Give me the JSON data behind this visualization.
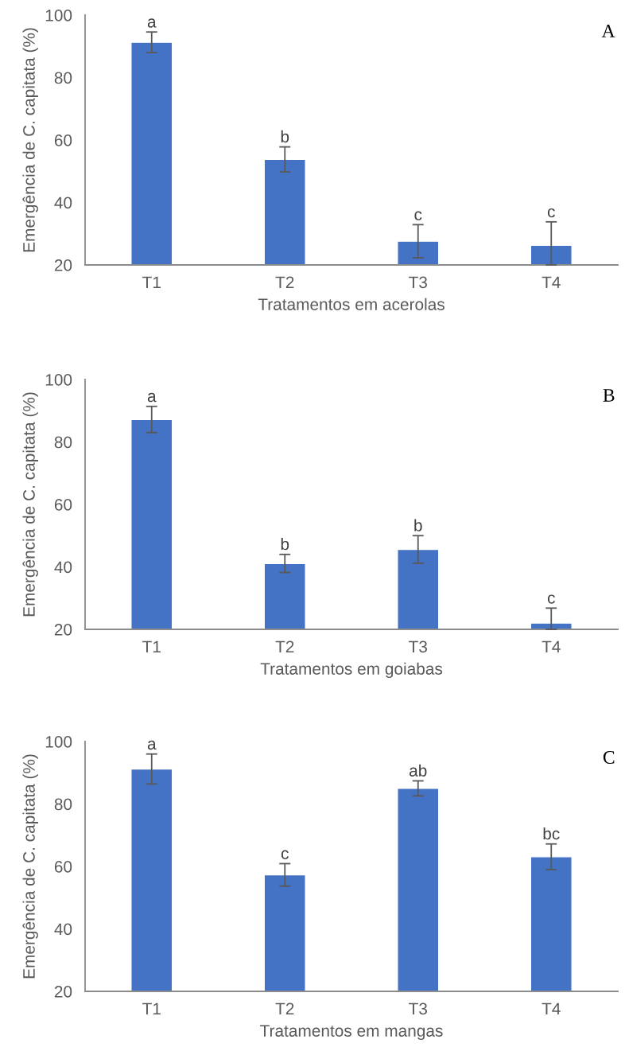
{
  "chart_data": [
    {
      "type": "bar",
      "title": "A",
      "xlabel": "Tratamentos em acerolas",
      "ylabel": "Emergência de C. capitata (%)",
      "categories": [
        "T1",
        "T2",
        "T3",
        "T4"
      ],
      "values": [
        91.3,
        53.8,
        27.6,
        26.3
      ],
      "errors": [
        3.3,
        4.0,
        5.3,
        [
          20,
          33.8
        ]
      ],
      "value_labels": [
        "a",
        "b",
        "c",
        "c"
      ],
      "color": "#4472c4",
      "ylim": [
        20,
        100
      ],
      "yticks": [
        20,
        40,
        60,
        80,
        100
      ],
      "grid": false,
      "legend": false
    },
    {
      "type": "bar",
      "title": "B",
      "xlabel": "Tratamentos em goiabas",
      "ylabel": "Emergência de C. capitata (%)",
      "categories": [
        "T1",
        "T2",
        "T3",
        "T4"
      ],
      "values": [
        87.2,
        41.1,
        45.6,
        22.0
      ],
      "errors": [
        4.2,
        2.9,
        4.4,
        [
          20,
          26.8
        ]
      ],
      "value_labels": [
        "a",
        "b",
        "b",
        "c"
      ],
      "color": "#4472c4",
      "ylim": [
        20,
        100
      ],
      "yticks": [
        20,
        40,
        60,
        80,
        100
      ],
      "grid": false,
      "legend": false
    },
    {
      "type": "bar",
      "title": "C",
      "xlabel": "Tratamentos em mangas",
      "ylabel": "Emergência de C. capitata (%)",
      "categories": [
        "T1",
        "T2",
        "T3",
        "T4"
      ],
      "values": [
        91.2,
        57.3,
        85.0,
        63.1
      ],
      "errors": [
        4.8,
        3.6,
        2.4,
        4.1
      ],
      "value_labels": [
        "a",
        "c",
        "ab",
        "bc"
      ],
      "color": "#4472c4",
      "ylim": [
        20,
        100
      ],
      "yticks": [
        20,
        40,
        60,
        80,
        100
      ],
      "grid": false,
      "legend": false
    }
  ]
}
